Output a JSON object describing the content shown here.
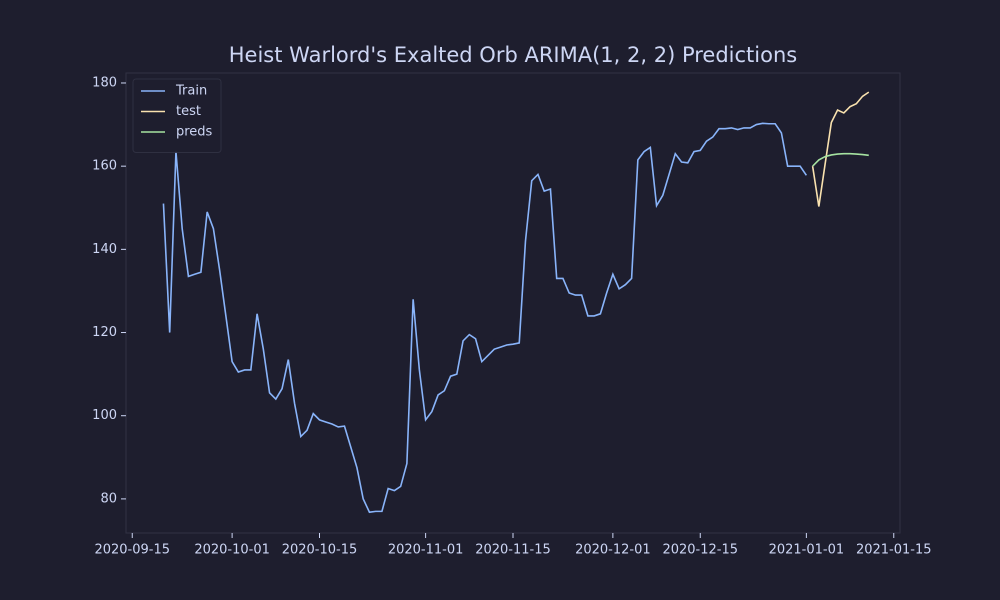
{
  "chart_data": {
    "type": "line",
    "title": "Heist Warlord's Exalted Orb ARIMA(1, 2, 2) Predictions",
    "legend": "upper left",
    "grid": false,
    "xlim": [
      "2020-09-14",
      "2021-01-16"
    ],
    "xticks": [
      "2020-09-15",
      "2020-10-01",
      "2020-10-15",
      "2020-11-01",
      "2020-11-15",
      "2020-12-01",
      "2020-12-15",
      "2021-01-01",
      "2021-01-15"
    ],
    "ylim": [
      71.8,
      182.4
    ],
    "yticks": [
      80,
      100,
      120,
      140,
      160,
      180
    ],
    "series": [
      {
        "name": "Train",
        "color": "#89b4fa",
        "x": [
          "2020-09-20",
          "2020-09-21",
          "2020-09-22",
          "2020-09-23",
          "2020-09-24",
          "2020-09-25",
          "2020-09-26",
          "2020-09-27",
          "2020-09-28",
          "2020-09-29",
          "2020-09-30",
          "2020-10-01",
          "2020-10-02",
          "2020-10-03",
          "2020-10-04",
          "2020-10-05",
          "2020-10-06",
          "2020-10-07",
          "2020-10-08",
          "2020-10-09",
          "2020-10-10",
          "2020-10-11",
          "2020-10-12",
          "2020-10-13",
          "2020-10-14",
          "2020-10-15",
          "2020-10-16",
          "2020-10-17",
          "2020-10-18",
          "2020-10-19",
          "2020-10-20",
          "2020-10-21",
          "2020-10-22",
          "2020-10-23",
          "2020-10-24",
          "2020-10-25",
          "2020-10-26",
          "2020-10-27",
          "2020-10-28",
          "2020-10-29",
          "2020-10-30",
          "2020-10-31",
          "2020-11-01",
          "2020-11-02",
          "2020-11-03",
          "2020-11-04",
          "2020-11-05",
          "2020-11-06",
          "2020-11-07",
          "2020-11-08",
          "2020-11-09",
          "2020-11-10",
          "2020-11-11",
          "2020-11-12",
          "2020-11-13",
          "2020-11-14",
          "2020-11-15",
          "2020-11-16",
          "2020-11-17",
          "2020-11-18",
          "2020-11-19",
          "2020-11-20",
          "2020-11-21",
          "2020-11-22",
          "2020-11-23",
          "2020-11-24",
          "2020-11-25",
          "2020-11-26",
          "2020-11-27",
          "2020-11-28",
          "2020-11-29",
          "2020-11-30",
          "2020-12-01",
          "2020-12-02",
          "2020-12-03",
          "2020-12-04",
          "2020-12-05",
          "2020-12-06",
          "2020-12-07",
          "2020-12-08",
          "2020-12-09",
          "2020-12-10",
          "2020-12-11",
          "2020-12-12",
          "2020-12-13",
          "2020-12-14",
          "2020-12-15",
          "2020-12-16",
          "2020-12-17",
          "2020-12-18",
          "2020-12-19",
          "2020-12-20",
          "2020-12-21",
          "2020-12-22",
          "2020-12-23",
          "2020-12-24",
          "2020-12-25",
          "2020-12-26",
          "2020-12-27",
          "2020-12-28",
          "2020-12-29",
          "2020-12-30",
          "2020-12-31",
          "2021-01-01"
        ],
        "values": [
          151,
          120,
          163.5,
          145,
          133.5,
          134,
          134.5,
          149,
          145,
          135,
          124,
          113,
          110.5,
          111,
          111,
          124.5,
          116,
          105.5,
          104,
          106.5,
          113.5,
          103,
          95,
          96.5,
          100.5,
          99,
          98.5,
          98,
          97.3,
          97.5,
          92.5,
          87.5,
          80,
          76.8,
          77,
          77,
          82.5,
          82,
          83,
          88.5,
          128,
          111,
          99,
          101,
          105,
          106,
          109.5,
          110,
          118,
          119.5,
          118.5,
          113,
          114.5,
          116,
          116.5,
          117,
          117.2,
          117.5,
          142,
          156.5,
          158,
          154,
          154.5,
          133,
          133,
          129.5,
          129,
          129,
          124,
          124,
          124.5,
          129.5,
          134,
          130.5,
          131.5,
          133,
          161.5,
          163.5,
          164.5,
          150.5,
          153,
          158,
          163,
          161,
          160.8,
          163.5,
          163.8,
          166,
          167,
          169,
          169,
          169.2,
          168.8,
          169.2,
          169.2,
          170,
          170.3,
          170.2,
          170.2,
          168,
          160,
          160,
          160,
          157.8
        ]
      },
      {
        "name": "test",
        "color": "#f9e2af",
        "x": [
          "2021-01-02",
          "2021-01-03",
          "2021-01-04",
          "2021-01-05",
          "2021-01-06",
          "2021-01-07",
          "2021-01-08",
          "2021-01-09",
          "2021-01-10",
          "2021-01-11"
        ],
        "values": [
          160,
          150.3,
          160.5,
          170.5,
          173.5,
          172.8,
          174.3,
          175,
          176.8,
          177.8
        ]
      },
      {
        "name": "preds",
        "color": "#a6e3a1",
        "x": [
          "2021-01-02",
          "2021-01-03",
          "2021-01-04",
          "2021-01-05",
          "2021-01-06",
          "2021-01-07",
          "2021-01-08",
          "2021-01-09",
          "2021-01-10",
          "2021-01-11"
        ],
        "values": [
          160,
          161.5,
          162.3,
          162.7,
          162.9,
          163,
          163,
          162.9,
          162.8,
          162.6
        ]
      }
    ]
  }
}
